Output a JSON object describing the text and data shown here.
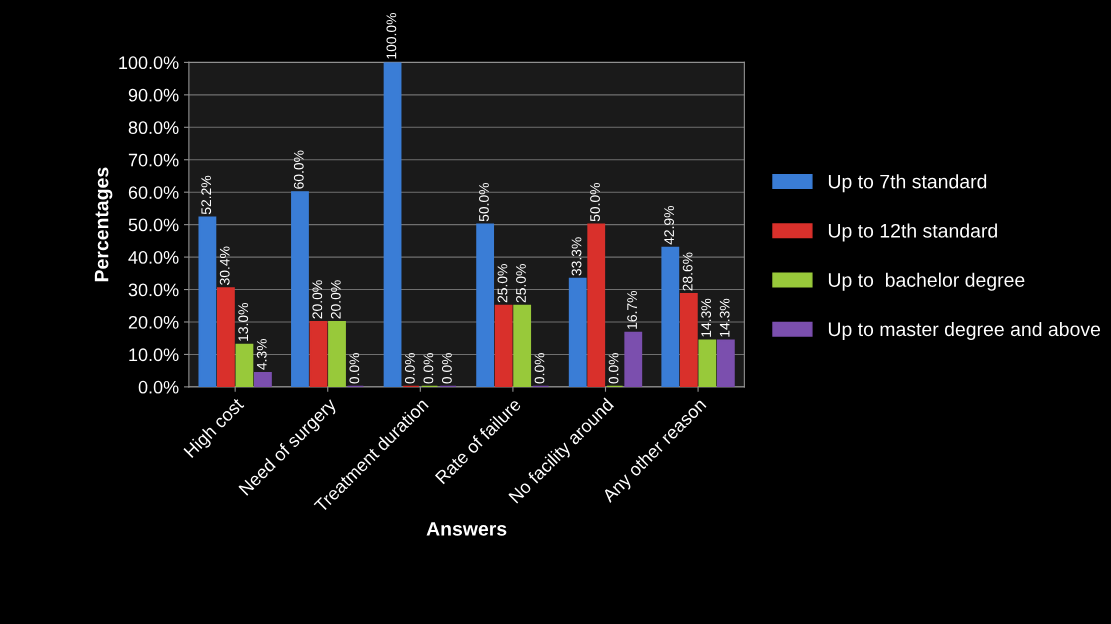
{
  "chart_data": {
    "type": "bar",
    "xlabel": "Answers",
    "ylabel": "Percentages",
    "categories": [
      "High cost",
      "Need of surgery",
      "Treatment duration",
      "Rate of failure",
      "No facility around",
      "Any other reason"
    ],
    "series": [
      {
        "name": "Up to 7th standard",
        "color": "#3a7dd6",
        "values": [
          52.2,
          60.0,
          100.0,
          50.0,
          33.3,
          42.9
        ],
        "value_labels": [
          "52.2%",
          "60.0%",
          "100.0%",
          "50.0%",
          "33.3%",
          "42.9%"
        ]
      },
      {
        "name": "Up to 12th standard",
        "color": "#d9302b",
        "values": [
          30.4,
          20.0,
          0.0,
          25.0,
          50.0,
          28.6
        ],
        "value_labels": [
          "30.4%",
          "20.0%",
          "0.0%",
          "25.0%",
          "50.0%",
          "28.6%"
        ]
      },
      {
        "name": "Up to  bachelor degree",
        "color": "#98c93a",
        "values": [
          13.0,
          20.0,
          0.0,
          25.0,
          0.0,
          14.3
        ],
        "value_labels": [
          "13.0%",
          "20.0%",
          "0.0%",
          "25.0%",
          "0.0%",
          "14.3%"
        ]
      },
      {
        "name": "Up to master degree and above",
        "color": "#7b4fae",
        "values": [
          4.3,
          0.0,
          0.0,
          0.0,
          16.7,
          14.3
        ],
        "value_labels": [
          "4.3%",
          "0.0%",
          "0.0%",
          "0.0%",
          "16.7%",
          "14.3%"
        ]
      }
    ],
    "ylim": [
      0,
      100
    ],
    "yticks": [
      {
        "value": 0,
        "label": "0.0%"
      },
      {
        "value": 10,
        "label": "10.0%"
      },
      {
        "value": 20,
        "label": "20.0%"
      },
      {
        "value": 30,
        "label": "30.0%"
      },
      {
        "value": 40,
        "label": "40.0%"
      },
      {
        "value": 50,
        "label": "50.0%"
      },
      {
        "value": 60,
        "label": "60.0%"
      },
      {
        "value": 70,
        "label": "70.0%"
      },
      {
        "value": 80,
        "label": "80.0%"
      },
      {
        "value": 90,
        "label": "90.0%"
      },
      {
        "value": 100,
        "label": "100.0%"
      }
    ],
    "grid": "y",
    "legend": "right"
  }
}
